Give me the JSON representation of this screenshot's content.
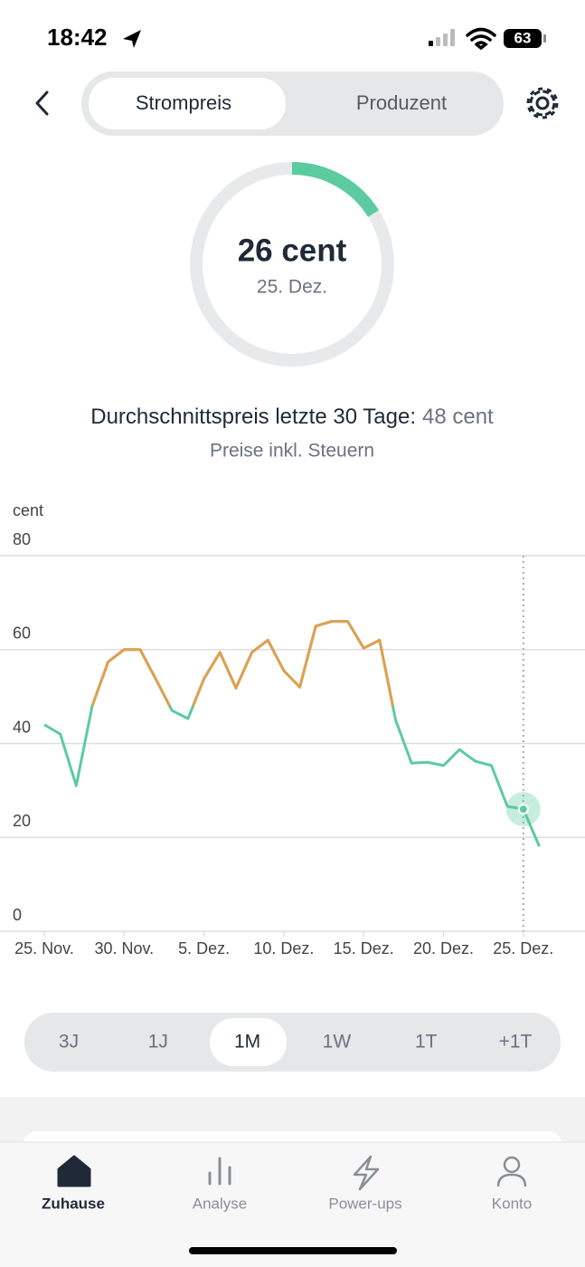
{
  "status_bar": {
    "time": "18:42",
    "battery": "63"
  },
  "tabs": [
    "Strompreis",
    "Produzent"
  ],
  "gauge": {
    "value_text": "26 cent",
    "date": "25. Dez."
  },
  "average": {
    "label": "Durchschnittspreis letzte 30 Tage:",
    "value": {
      "value": 48,
      "label": "48 cent"
    }
  },
  "note": "Preise inkl. Steuern",
  "chart_data": {
    "type": "line",
    "y_label": "cent",
    "categories": [
      "25. Nov.",
      null,
      null,
      null,
      null,
      "30. Nov.",
      null,
      null,
      null,
      null,
      "5. Dez.",
      null,
      null,
      null,
      null,
      "10. Dez.",
      null,
      null,
      null,
      null,
      "15. Dez.",
      null,
      null,
      null,
      null,
      "20. Dez.",
      null,
      null,
      null,
      null,
      "25. Dez.",
      null
    ],
    "series": [
      {
        "color": "#5ccb9f",
        "high_color": "#e0a04f",
        "values": [
          44,
          42,
          31,
          48,
          57.4,
          60,
          60,
          53.6,
          47,
          45.3,
          53.8,
          59.4,
          51.8,
          59.4,
          62,
          55.5,
          52,
          65,
          66,
          66,
          60.3,
          62,
          45,
          35.8,
          36,
          35.3,
          38.7,
          36.2,
          35.3,
          26.6,
          26,
          18.1
        ]
      }
    ],
    "ylim": [
      0,
      80
    ],
    "yticks": [
      0,
      20,
      40,
      60,
      80
    ],
    "grid": true
  },
  "periods": [
    "3J",
    "1J",
    "1M",
    "1W",
    "1T",
    "+1T"
  ],
  "nav": [
    "Zuhause",
    "Analyse",
    "Power-ups",
    "Konto"
  ]
}
